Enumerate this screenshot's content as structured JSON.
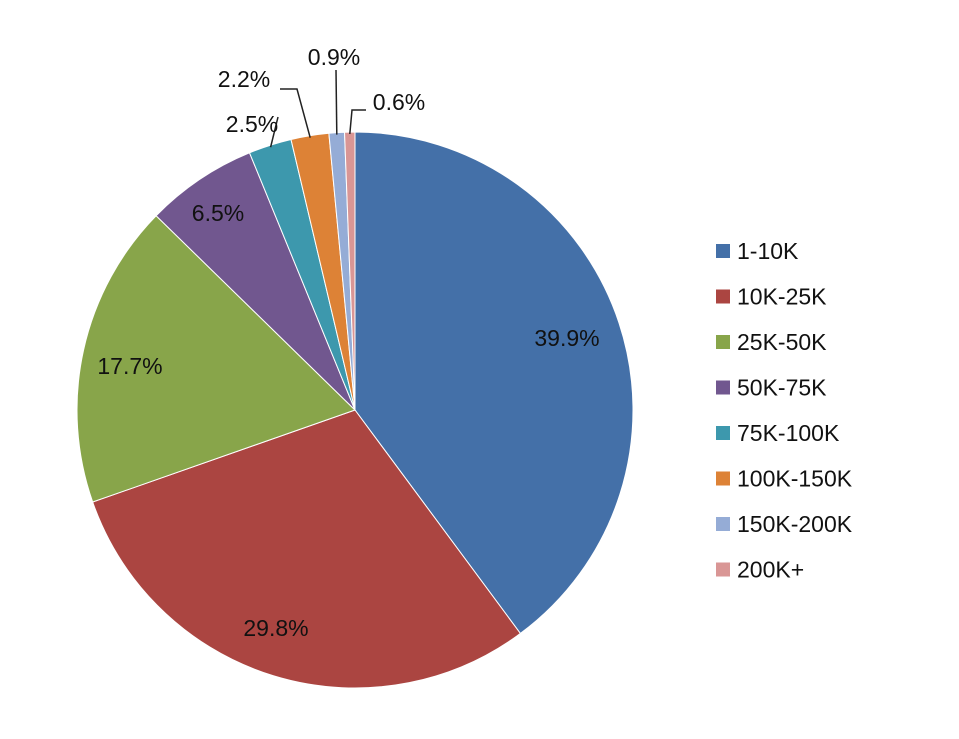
{
  "chart_data": {
    "type": "pie",
    "title": "",
    "categories": [
      "1-10K",
      "10K-25K",
      "25K-50K",
      "50K-75K",
      "75K-100K",
      "100K-150K",
      "150K-200K",
      "200K+"
    ],
    "values": [
      39.9,
      29.8,
      17.7,
      6.5,
      2.5,
      2.2,
      0.9,
      0.6
    ],
    "data_labels": [
      "39.9%",
      "29.8%",
      "17.7%",
      "6.5%",
      "2.5%",
      "2.2%",
      "0.9%",
      "0.6%"
    ],
    "colors": [
      "#4470a8",
      "#ab4541",
      "#88a54a",
      "#71578f",
      "#3d98ad",
      "#dd8236",
      "#95acd6",
      "#d99695"
    ],
    "start_angle": "12 o'clock",
    "direction": "clockwise",
    "legend_position": "right"
  }
}
